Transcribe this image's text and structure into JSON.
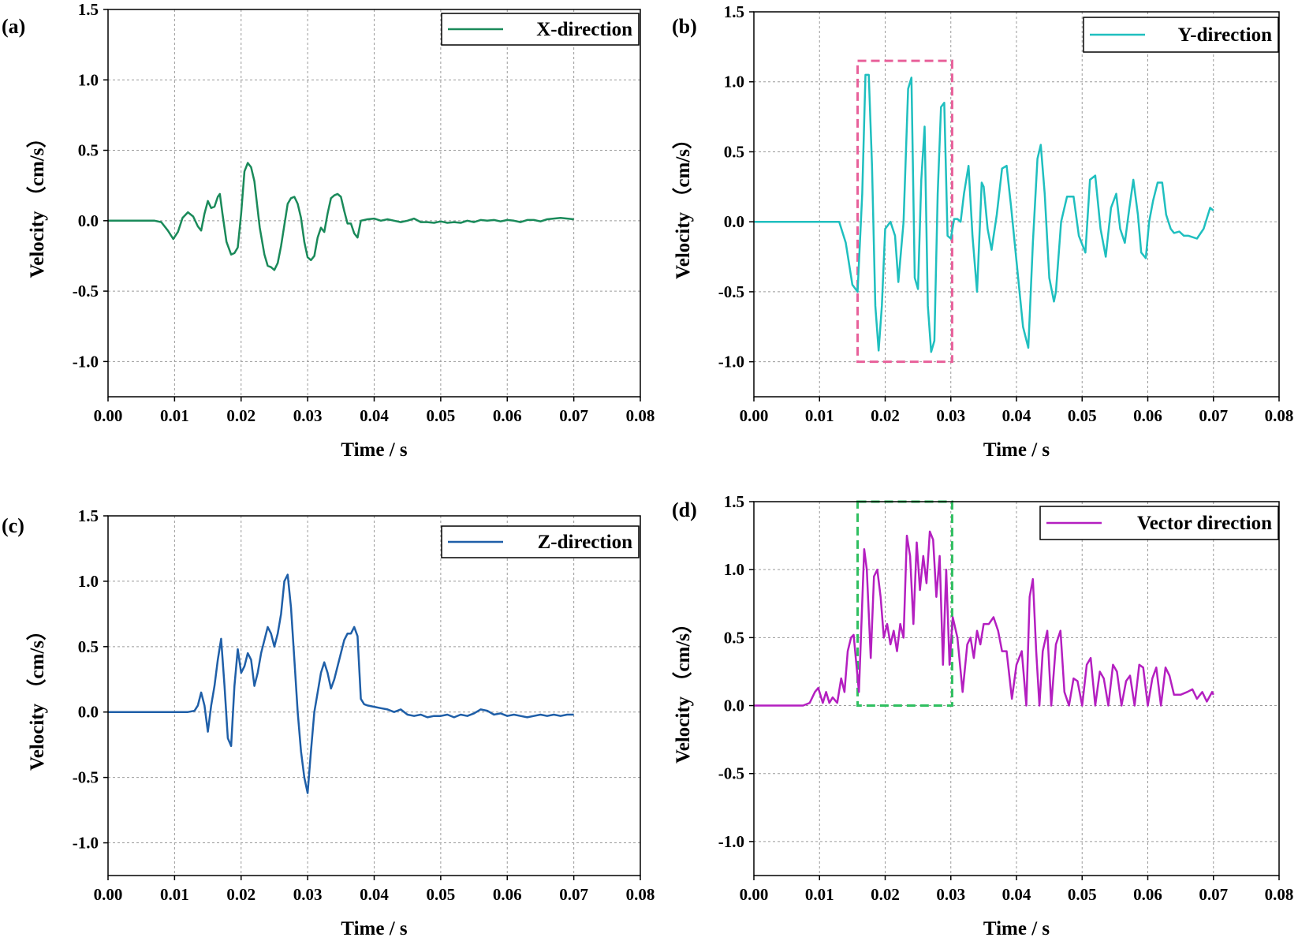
{
  "chart_data": [
    {
      "panel": "(a)",
      "type": "line",
      "xlabel": "Time / s",
      "ylabel": "Velocity （cm/s）",
      "xlim": [
        0,
        0.08
      ],
      "ylim": [
        -1.25,
        1.5
      ],
      "xticks": [
        "0.00",
        "0.01",
        "0.02",
        "0.03",
        "0.04",
        "0.05",
        "0.06",
        "0.07",
        "0.08"
      ],
      "yticks": [
        "-1.0",
        "-0.5",
        "0.0",
        "0.5",
        "1.0",
        "1.5"
      ],
      "grid": true,
      "legend_position": "top-right",
      "series": [
        {
          "name": "X-direction",
          "color": "#1a8a5a",
          "x": [
            0,
            0.007,
            0.008,
            0.009,
            0.0098,
            0.0105,
            0.0112,
            0.012,
            0.0128,
            0.0135,
            0.014,
            0.0145,
            0.015,
            0.0155,
            0.016,
            0.0165,
            0.0168,
            0.0172,
            0.0178,
            0.0185,
            0.019,
            0.0195,
            0.02,
            0.0205,
            0.021,
            0.0215,
            0.022,
            0.0228,
            0.0235,
            0.024,
            0.0245,
            0.025,
            0.0255,
            0.026,
            0.0265,
            0.027,
            0.0275,
            0.028,
            0.0285,
            0.029,
            0.0295,
            0.03,
            0.0305,
            0.031,
            0.0315,
            0.032,
            0.0325,
            0.033,
            0.0335,
            0.034,
            0.0345,
            0.035,
            0.0355,
            0.036,
            0.0365,
            0.037,
            0.0375,
            0.038,
            0.039,
            0.04,
            0.041,
            0.042,
            0.043,
            0.044,
            0.045,
            0.046,
            0.047,
            0.048,
            0.049,
            0.05,
            0.051,
            0.052,
            0.053,
            0.054,
            0.055,
            0.056,
            0.057,
            0.058,
            0.059,
            0.06,
            0.061,
            0.062,
            0.063,
            0.064,
            0.065,
            0.066,
            0.067,
            0.068,
            0.069,
            0.07
          ],
          "values": [
            0,
            0,
            -0.01,
            -0.07,
            -0.13,
            -0.08,
            0.02,
            0.06,
            0.03,
            -0.04,
            -0.07,
            0.05,
            0.14,
            0.09,
            0.1,
            0.17,
            0.19,
            0.05,
            -0.15,
            -0.24,
            -0.23,
            -0.19,
            0.05,
            0.35,
            0.41,
            0.38,
            0.28,
            -0.05,
            -0.24,
            -0.32,
            -0.33,
            -0.35,
            -0.3,
            -0.18,
            -0.03,
            0.12,
            0.16,
            0.17,
            0.12,
            0.02,
            -0.15,
            -0.26,
            -0.28,
            -0.25,
            -0.12,
            -0.05,
            -0.08,
            0.05,
            0.16,
            0.18,
            0.19,
            0.17,
            0.07,
            -0.02,
            -0.02,
            -0.09,
            -0.12,
            0.0,
            0.01,
            0.015,
            0.0,
            0.01,
            0.0,
            -0.01,
            0.0,
            0.015,
            -0.01,
            -0.01,
            -0.015,
            -0.005,
            -0.015,
            -0.01,
            -0.015,
            0.0,
            -0.01,
            0.005,
            0.0,
            0.005,
            -0.005,
            0.005,
            0.0,
            -0.01,
            0.005,
            0.005,
            -0.005,
            0.01,
            0.015,
            0.02,
            0.015,
            0.01
          ]
        }
      ],
      "annotation_box": null
    },
    {
      "panel": "(b)",
      "type": "line",
      "xlabel": "Time / s",
      "ylabel": "Velocity （cm/s）",
      "xlim": [
        0,
        0.08
      ],
      "ylim": [
        -1.25,
        1.5
      ],
      "xticks": [
        "0.00",
        "0.01",
        "0.02",
        "0.03",
        "0.04",
        "0.05",
        "0.06",
        "0.07",
        "0.08"
      ],
      "yticks": [
        "-1.0",
        "-0.5",
        "0.0",
        "0.5",
        "1.0",
        "1.5"
      ],
      "grid": true,
      "legend_position": "top-right",
      "series": [
        {
          "name": "Y-direction",
          "color": "#1fbfbf",
          "x": [
            0,
            0.013,
            0.014,
            0.015,
            0.0158,
            0.0165,
            0.017,
            0.0175,
            0.018,
            0.0185,
            0.019,
            0.0195,
            0.02,
            0.0208,
            0.0215,
            0.022,
            0.0228,
            0.0235,
            0.024,
            0.0245,
            0.025,
            0.0255,
            0.026,
            0.0265,
            0.027,
            0.0275,
            0.028,
            0.0285,
            0.029,
            0.0295,
            0.03,
            0.0305,
            0.031,
            0.0315,
            0.032,
            0.0327,
            0.0333,
            0.034,
            0.0347,
            0.035,
            0.0356,
            0.0362,
            0.037,
            0.0378,
            0.0385,
            0.0392,
            0.04,
            0.041,
            0.0418,
            0.0425,
            0.0432,
            0.0437,
            0.0443,
            0.045,
            0.0457,
            0.046,
            0.0468,
            0.0477,
            0.0487,
            0.0495,
            0.0505,
            0.0512,
            0.052,
            0.0528,
            0.0536,
            0.0544,
            0.0552,
            0.0558,
            0.0565,
            0.0572,
            0.0578,
            0.0585,
            0.059,
            0.0597,
            0.0602,
            0.0608,
            0.0615,
            0.0622,
            0.0628,
            0.0635,
            0.064,
            0.0648,
            0.0655,
            0.0662,
            0.0675,
            0.0685,
            0.0695,
            0.07
          ],
          "values": [
            0,
            0,
            -0.15,
            -0.45,
            -0.5,
            0.2,
            1.05,
            1.05,
            0.4,
            -0.6,
            -0.92,
            -0.6,
            -0.05,
            0.0,
            -0.1,
            -0.43,
            0.0,
            0.95,
            1.03,
            -0.4,
            -0.48,
            0.3,
            0.68,
            -0.6,
            -0.93,
            -0.85,
            0.2,
            0.82,
            0.85,
            -0.1,
            -0.12,
            0.02,
            0.02,
            0.0,
            0.2,
            0.4,
            -0.1,
            -0.5,
            0.28,
            0.25,
            -0.05,
            -0.2,
            0.05,
            0.38,
            0.4,
            0.1,
            -0.28,
            -0.75,
            -0.9,
            -0.15,
            0.45,
            0.55,
            0.2,
            -0.4,
            -0.57,
            -0.5,
            0.0,
            0.18,
            0.18,
            -0.1,
            -0.22,
            0.3,
            0.33,
            -0.05,
            -0.25,
            0.1,
            0.2,
            -0.05,
            -0.15,
            0.1,
            0.3,
            0.05,
            -0.22,
            -0.26,
            0.0,
            0.15,
            0.28,
            0.28,
            0.05,
            -0.05,
            -0.08,
            -0.07,
            -0.1,
            -0.1,
            -0.12,
            -0.05,
            0.1,
            0.08
          ]
        }
      ],
      "annotation_box": {
        "color": "#e8609a",
        "x": [
          0.0158,
          0.0302
        ],
        "y": [
          -1.0,
          1.15
        ]
      }
    },
    {
      "panel": "(c)",
      "type": "line",
      "xlabel": "Time / s",
      "ylabel": "Velocity （cm/s）",
      "xlim": [
        0,
        0.08
      ],
      "ylim": [
        -1.25,
        1.5
      ],
      "xticks": [
        "0.00",
        "0.01",
        "0.02",
        "0.03",
        "0.04",
        "0.05",
        "0.06",
        "0.07",
        "0.08"
      ],
      "yticks": [
        "-1.0",
        "-0.5",
        "0.0",
        "0.5",
        "1.0",
        "1.5"
      ],
      "grid": true,
      "legend_position": "top-right",
      "series": [
        {
          "name": "Z-direction",
          "color": "#1f5fa8",
          "x": [
            0,
            0.012,
            0.013,
            0.0135,
            0.014,
            0.0145,
            0.015,
            0.0155,
            0.016,
            0.0165,
            0.017,
            0.0175,
            0.018,
            0.0185,
            0.019,
            0.0195,
            0.02,
            0.0205,
            0.021,
            0.0215,
            0.022,
            0.0225,
            0.023,
            0.0235,
            0.024,
            0.0245,
            0.025,
            0.0255,
            0.026,
            0.0265,
            0.027,
            0.0275,
            0.028,
            0.0285,
            0.029,
            0.0295,
            0.03,
            0.0305,
            0.031,
            0.0315,
            0.032,
            0.0325,
            0.033,
            0.0335,
            0.034,
            0.0345,
            0.035,
            0.0355,
            0.036,
            0.0365,
            0.037,
            0.0375,
            0.038,
            0.0385,
            0.039,
            0.04,
            0.041,
            0.042,
            0.043,
            0.044,
            0.045,
            0.046,
            0.047,
            0.048,
            0.049,
            0.05,
            0.051,
            0.052,
            0.053,
            0.054,
            0.055,
            0.056,
            0.057,
            0.058,
            0.059,
            0.06,
            0.061,
            0.062,
            0.063,
            0.064,
            0.065,
            0.066,
            0.067,
            0.068,
            0.069,
            0.07
          ],
          "values": [
            0,
            0,
            0.01,
            0.05,
            0.15,
            0.05,
            -0.15,
            0.05,
            0.2,
            0.4,
            0.56,
            0.2,
            -0.2,
            -0.26,
            0.2,
            0.48,
            0.3,
            0.35,
            0.45,
            0.4,
            0.2,
            0.3,
            0.45,
            0.55,
            0.65,
            0.6,
            0.5,
            0.6,
            0.75,
            1.0,
            1.05,
            0.8,
            0.4,
            0.0,
            -0.3,
            -0.5,
            -0.62,
            -0.3,
            0.0,
            0.15,
            0.3,
            0.38,
            0.3,
            0.18,
            0.25,
            0.35,
            0.45,
            0.55,
            0.6,
            0.6,
            0.65,
            0.58,
            0.1,
            0.06,
            0.05,
            0.04,
            0.03,
            0.02,
            0.0,
            0.02,
            -0.02,
            -0.03,
            -0.02,
            -0.04,
            -0.03,
            -0.03,
            -0.02,
            -0.04,
            -0.02,
            -0.03,
            -0.01,
            0.02,
            0.01,
            -0.02,
            -0.01,
            -0.03,
            -0.02,
            -0.03,
            -0.04,
            -0.03,
            -0.02,
            -0.03,
            -0.02,
            -0.03,
            -0.02,
            -0.02
          ]
        }
      ],
      "annotation_box": null
    },
    {
      "panel": "(d)",
      "type": "line",
      "xlabel": "Time / s",
      "ylabel": "Velocity （cm/s）",
      "xlim": [
        0,
        0.08
      ],
      "ylim": [
        -1.25,
        1.5
      ],
      "xticks": [
        "0.00",
        "0.01",
        "0.02",
        "0.03",
        "0.04",
        "0.05",
        "0.06",
        "0.07",
        "0.08"
      ],
      "yticks": [
        "-1.0",
        "-0.5",
        "0.0",
        "0.5",
        "1.0",
        "1.5"
      ],
      "grid": true,
      "legend_position": "top-right",
      "series": [
        {
          "name": "Vector direction",
          "color": "#b41fc0",
          "x": [
            0,
            0.0075,
            0.0085,
            0.0093,
            0.0098,
            0.0105,
            0.011,
            0.0115,
            0.012,
            0.0127,
            0.0133,
            0.0138,
            0.0143,
            0.0148,
            0.0152,
            0.016,
            0.0168,
            0.0172,
            0.0178,
            0.0183,
            0.0188,
            0.0193,
            0.0198,
            0.0203,
            0.0208,
            0.0213,
            0.0218,
            0.0223,
            0.0228,
            0.0233,
            0.0238,
            0.0243,
            0.0248,
            0.0253,
            0.0258,
            0.0263,
            0.0268,
            0.0273,
            0.0278,
            0.0283,
            0.0288,
            0.0293,
            0.0298,
            0.0303,
            0.031,
            0.0318,
            0.0325,
            0.033,
            0.0335,
            0.034,
            0.0345,
            0.035,
            0.0358,
            0.0365,
            0.0372,
            0.0378,
            0.0385,
            0.0393,
            0.04,
            0.0408,
            0.0415,
            0.042,
            0.0425,
            0.043,
            0.0435,
            0.044,
            0.0447,
            0.0453,
            0.046,
            0.0467,
            0.0473,
            0.048,
            0.0487,
            0.0493,
            0.05,
            0.0507,
            0.0513,
            0.052,
            0.0527,
            0.0533,
            0.054,
            0.0547,
            0.0553,
            0.056,
            0.0567,
            0.0573,
            0.058,
            0.0587,
            0.0593,
            0.06,
            0.0607,
            0.0613,
            0.062,
            0.0627,
            0.0633,
            0.064,
            0.065,
            0.066,
            0.0668,
            0.0675,
            0.0683,
            0.069,
            0.0698,
            0.07
          ],
          "values": [
            0,
            0,
            0.02,
            0.1,
            0.13,
            0.02,
            0.1,
            0.02,
            0.06,
            0.02,
            0.2,
            0.1,
            0.4,
            0.5,
            0.52,
            0.1,
            1.15,
            1.0,
            0.35,
            0.95,
            1.0,
            0.8,
            0.5,
            0.6,
            0.45,
            0.55,
            0.4,
            0.6,
            0.5,
            1.25,
            1.1,
            0.6,
            1.2,
            0.85,
            1.1,
            0.9,
            1.28,
            1.22,
            0.8,
            1.1,
            0.3,
            1.0,
            0.3,
            0.65,
            0.5,
            0.1,
            0.45,
            0.5,
            0.35,
            0.55,
            0.45,
            0.6,
            0.6,
            0.65,
            0.55,
            0.4,
            0.4,
            0.05,
            0.3,
            0.4,
            0.0,
            0.8,
            0.93,
            0.4,
            0.0,
            0.4,
            0.55,
            0.0,
            0.45,
            0.55,
            0.1,
            0.0,
            0.2,
            0.18,
            0.0,
            0.3,
            0.35,
            0.0,
            0.25,
            0.2,
            0.0,
            0.3,
            0.25,
            0.0,
            0.18,
            0.22,
            0.0,
            0.3,
            0.28,
            0.0,
            0.2,
            0.28,
            0.0,
            0.28,
            0.22,
            0.08,
            0.08,
            0.1,
            0.12,
            0.05,
            0.1,
            0.03,
            0.1,
            0.08
          ]
        }
      ],
      "annotation_box": {
        "color": "#2fbf60",
        "x": [
          0.0158,
          0.0302
        ],
        "y": [
          0.0,
          1.5
        ]
      }
    }
  ]
}
